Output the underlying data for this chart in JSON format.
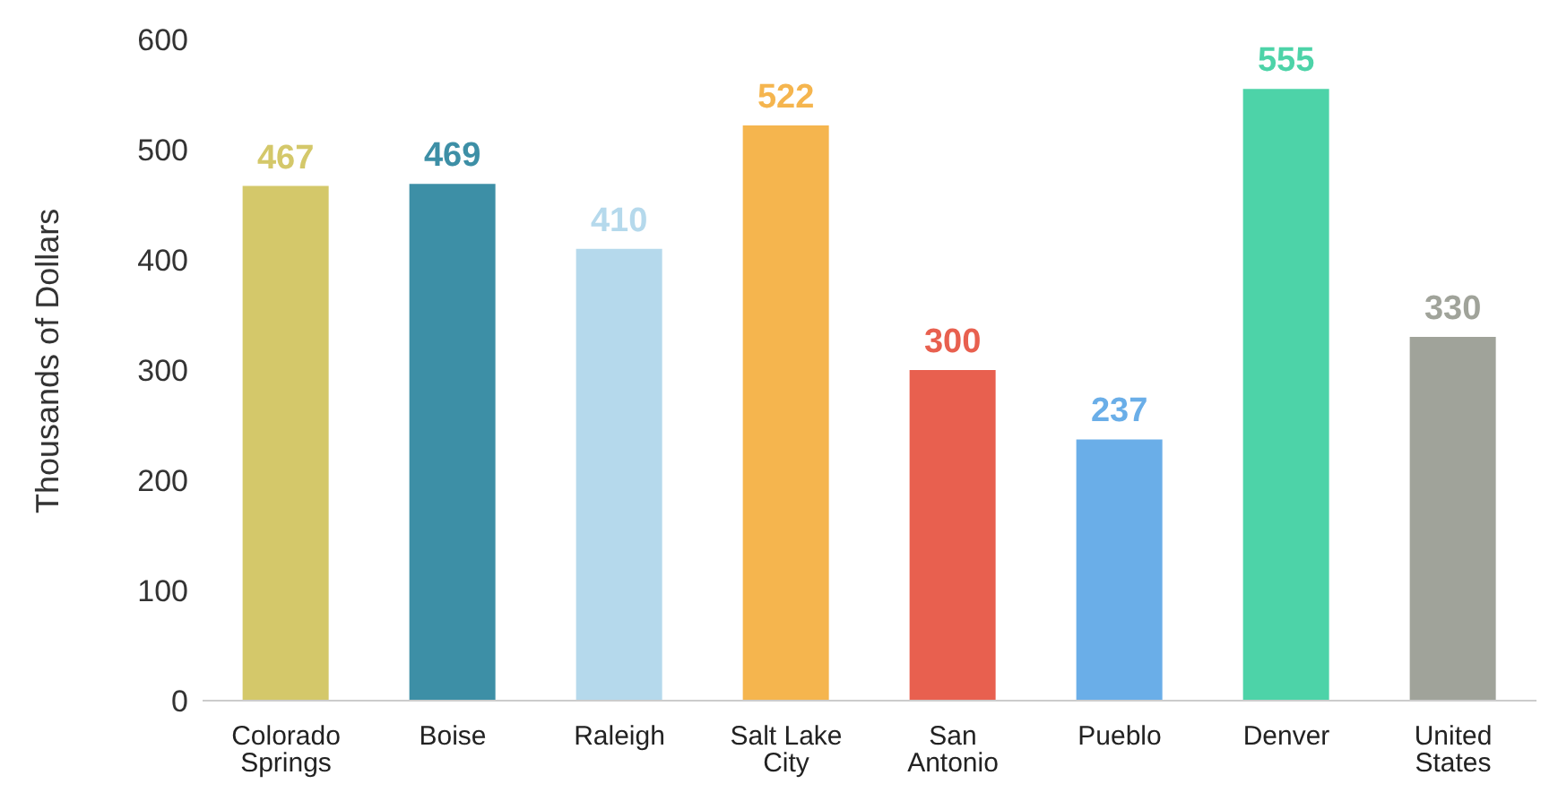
{
  "chart_data": {
    "type": "bar",
    "ylabel": "Thousands of Dollars",
    "categories": [
      "Colorado Springs",
      "Boise",
      "Raleigh",
      "Salt Lake City",
      "San Antonio",
      "Pueblo",
      "Denver",
      "United States"
    ],
    "values": [
      467,
      469,
      410,
      522,
      300,
      237,
      555,
      330
    ],
    "colors": [
      "#d4c86a",
      "#3d8fa6",
      "#b5d9ec",
      "#f5b54e",
      "#e8604f",
      "#6aaee8",
      "#4dd3a8",
      "#a0a39a"
    ],
    "ylim": [
      0,
      600
    ],
    "yticks": [
      0,
      100,
      200,
      300,
      400,
      500,
      600
    ],
    "grid": false,
    "data_labels": true
  }
}
